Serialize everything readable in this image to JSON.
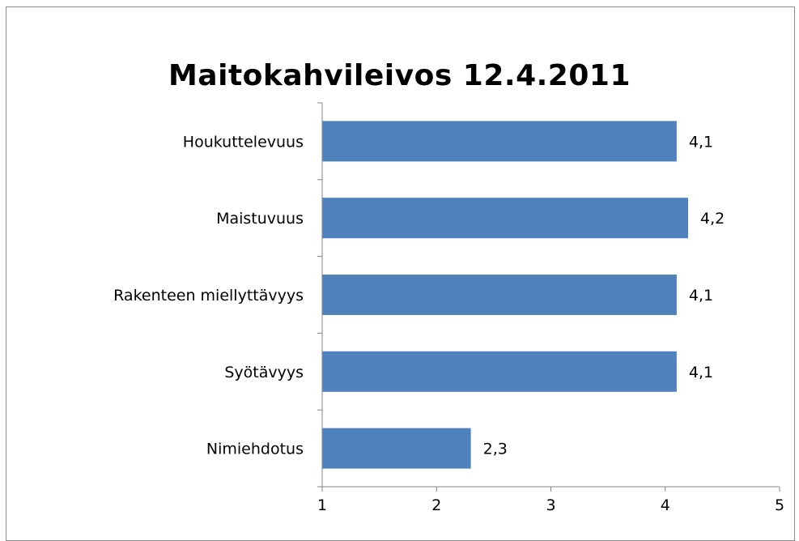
{
  "chart_data": {
    "type": "bar",
    "orientation": "horizontal",
    "title": "Maitokahvileivos 12.4.2011",
    "categories": [
      "Houkuttelevuus",
      "Maistuvuus",
      "Rakenteen miellyttävyys",
      "Syötävyys",
      "Nimiehdotus"
    ],
    "values": [
      4.1,
      4.2,
      4.1,
      4.1,
      2.3
    ],
    "value_labels": [
      "4,1",
      "4,2",
      "4,1",
      "4,1",
      "2,3"
    ],
    "xlim": [
      1,
      5
    ],
    "xticks": [
      "1",
      "2",
      "3",
      "4",
      "5"
    ],
    "grid": false,
    "legend": "none",
    "bar_color": "#4f81bd"
  }
}
